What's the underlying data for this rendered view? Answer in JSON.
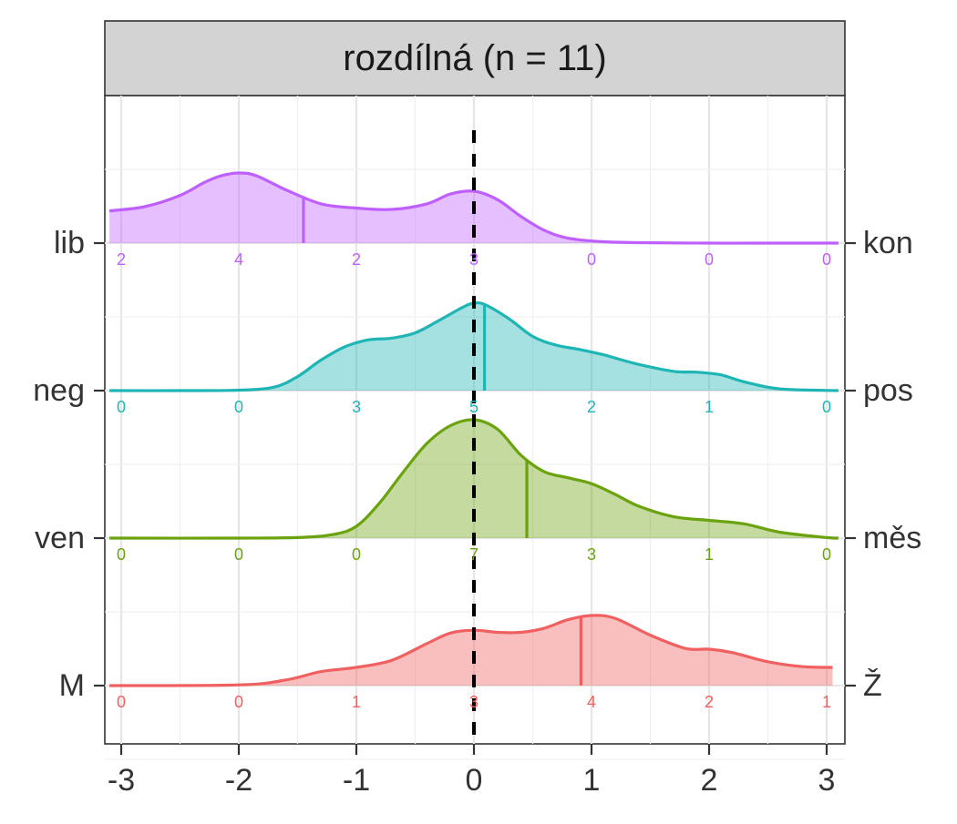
{
  "chart_data": {
    "type": "ridgeline density",
    "title": "rozdílná (n = 11)",
    "x_ticks": [
      -3,
      -2,
      -1,
      0,
      1,
      2,
      3
    ],
    "xlim": [
      -3.1,
      3.1
    ],
    "reference_line": 0,
    "grid": true,
    "rows": [
      {
        "left_label": "lib",
        "right_label": "kon",
        "color": "#BF5FFF",
        "mean": -1.45,
        "counts": [
          2,
          4,
          2,
          3,
          0,
          0,
          0
        ],
        "density_x": [
          -3.1,
          -2.8,
          -2.5,
          -2.3,
          -2.15,
          -2.0,
          -1.85,
          -1.6,
          -1.3,
          -1.0,
          -0.7,
          -0.4,
          -0.2,
          0.0,
          0.2,
          0.4,
          0.6,
          0.8,
          1.1,
          1.5,
          2.0,
          2.5,
          3.1
        ],
        "density_y": [
          0.46,
          0.52,
          0.68,
          0.86,
          0.96,
          1.0,
          0.96,
          0.76,
          0.56,
          0.5,
          0.48,
          0.56,
          0.7,
          0.74,
          0.62,
          0.38,
          0.18,
          0.07,
          0.02,
          0.005,
          0,
          0,
          0
        ]
      },
      {
        "left_label": "neg",
        "right_label": "pos",
        "color": "#1FB5B5",
        "mean": 0.09,
        "counts": [
          0,
          0,
          3,
          5,
          2,
          1,
          0
        ],
        "density_x": [
          -3.1,
          -2.5,
          -2.0,
          -1.7,
          -1.5,
          -1.3,
          -1.1,
          -0.9,
          -0.7,
          -0.5,
          -0.3,
          -0.1,
          0.0,
          0.1,
          0.3,
          0.5,
          0.7,
          0.9,
          1.1,
          1.4,
          1.7,
          1.9,
          2.1,
          2.3,
          2.6,
          3.1
        ],
        "density_y": [
          0,
          0,
          0.005,
          0.04,
          0.16,
          0.35,
          0.5,
          0.58,
          0.6,
          0.66,
          0.8,
          0.95,
          1.0,
          0.98,
          0.82,
          0.62,
          0.52,
          0.47,
          0.41,
          0.3,
          0.22,
          0.21,
          0.18,
          0.1,
          0.02,
          0
        ]
      },
      {
        "left_label": "ven",
        "right_label": "měs",
        "color": "#6BA30E",
        "mean": 0.45,
        "counts": [
          0,
          0,
          0,
          7,
          3,
          1,
          0
        ],
        "density_x": [
          -3.1,
          -2.0,
          -1.5,
          -1.2,
          -1.0,
          -0.8,
          -0.6,
          -0.4,
          -0.2,
          0.0,
          0.2,
          0.4,
          0.6,
          0.8,
          1.0,
          1.2,
          1.4,
          1.7,
          2.0,
          2.3,
          2.6,
          3.0,
          3.1
        ],
        "density_y": [
          0,
          0,
          0.005,
          0.03,
          0.1,
          0.3,
          0.56,
          0.8,
          0.95,
          1.0,
          0.92,
          0.7,
          0.56,
          0.51,
          0.46,
          0.37,
          0.27,
          0.18,
          0.15,
          0.12,
          0.05,
          0.005,
          0
        ]
      },
      {
        "left_label": "M",
        "right_label": "Ž",
        "color": "#F06060",
        "mean": 0.91,
        "counts": [
          0,
          0,
          1,
          3,
          4,
          2,
          1
        ],
        "density_x": [
          -3.1,
          -2.0,
          -1.6,
          -1.3,
          -1.0,
          -0.7,
          -0.4,
          -0.2,
          0.0,
          0.2,
          0.4,
          0.6,
          0.8,
          1.0,
          1.2,
          1.5,
          1.8,
          2.0,
          2.2,
          2.5,
          2.8,
          3.05
        ],
        "density_y": [
          0,
          0.01,
          0.08,
          0.2,
          0.26,
          0.36,
          0.6,
          0.75,
          0.79,
          0.76,
          0.76,
          0.82,
          0.94,
          1.0,
          0.96,
          0.72,
          0.53,
          0.52,
          0.47,
          0.34,
          0.27,
          0.26
        ]
      }
    ]
  }
}
